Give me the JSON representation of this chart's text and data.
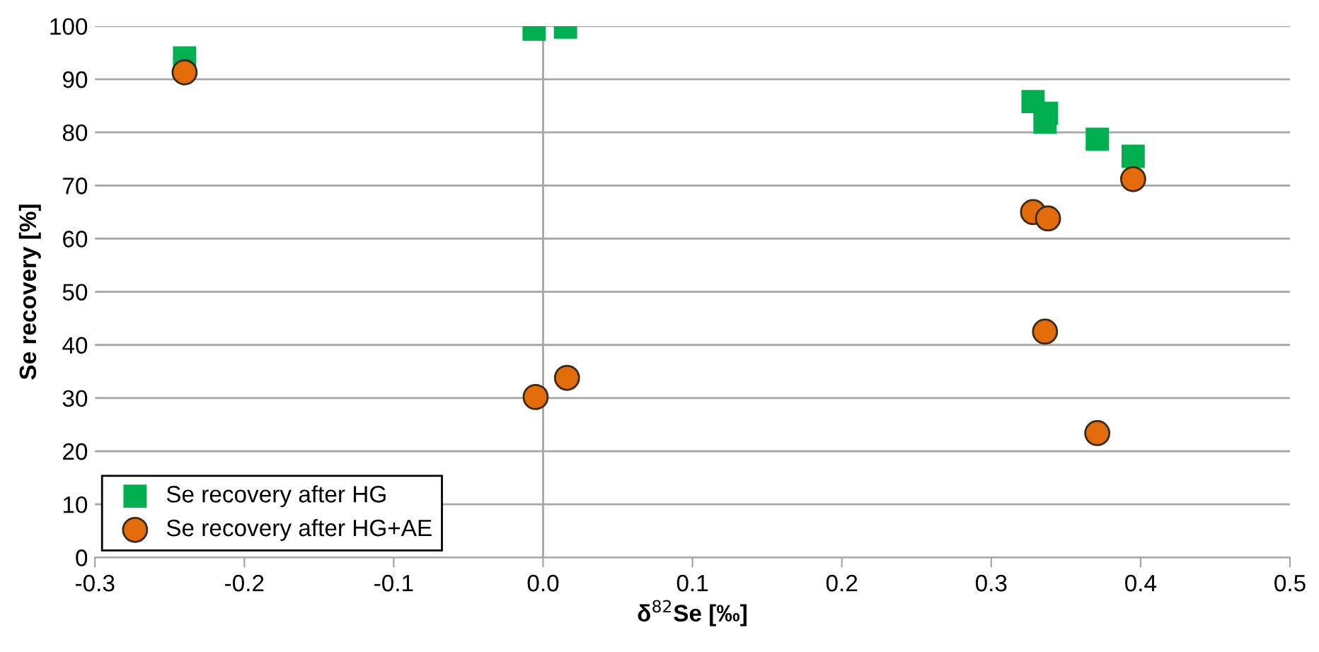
{
  "chart_data": {
    "type": "scatter",
    "xlabel": "δ$^{82}$Se [‰]",
    "ylabel": "Se recovery [%]",
    "xlim": [
      -0.3,
      0.5
    ],
    "xticks": [
      {
        "value": -0.3,
        "label": "-0.3"
      },
      {
        "value": -0.2,
        "label": "-0.2"
      },
      {
        "value": -0.1,
        "label": "-0.1"
      },
      {
        "value": 0,
        "label": "0.0"
      },
      {
        "value": 0.1,
        "label": "0.1"
      },
      {
        "value": 0.2,
        "label": "0.2"
      },
      {
        "value": 0.3,
        "label": "0.3"
      },
      {
        "value": 0.4,
        "label": "0.4"
      },
      {
        "value": 0.5,
        "label": "0.5"
      }
    ],
    "ylim": [
      0,
      100
    ],
    "yticks": [
      0,
      10,
      20,
      30,
      40,
      50,
      60,
      70,
      80,
      90,
      100
    ],
    "grid": "y",
    "legend": "bottom left",
    "ref_lines": [
      {
        "axis": "x",
        "value": 0,
        "color": "#a6a6a6"
      }
    ],
    "series": [
      {
        "name": "Se recovery after HG",
        "color": "#00b050",
        "marker": "square",
        "x": [
          -0.24,
          -0.006,
          0.015,
          0.336,
          0.337,
          0.328,
          0.371,
          0.395
        ],
        "values": [
          94,
          99.4,
          99.8,
          81.9,
          83.6,
          85.8,
          78.7,
          75.5
        ]
      },
      {
        "name": "Se recovery after HG+AE",
        "color": "#e36c0a",
        "marker": "circle",
        "x": [
          -0.24,
          -0.005,
          0.016,
          0.395,
          0.328,
          0.338,
          0.336,
          0.371
        ],
        "values": [
          91.3,
          30.2,
          33.8,
          71.2,
          65.0,
          63.8,
          42.5,
          23.4
        ]
      }
    ]
  }
}
